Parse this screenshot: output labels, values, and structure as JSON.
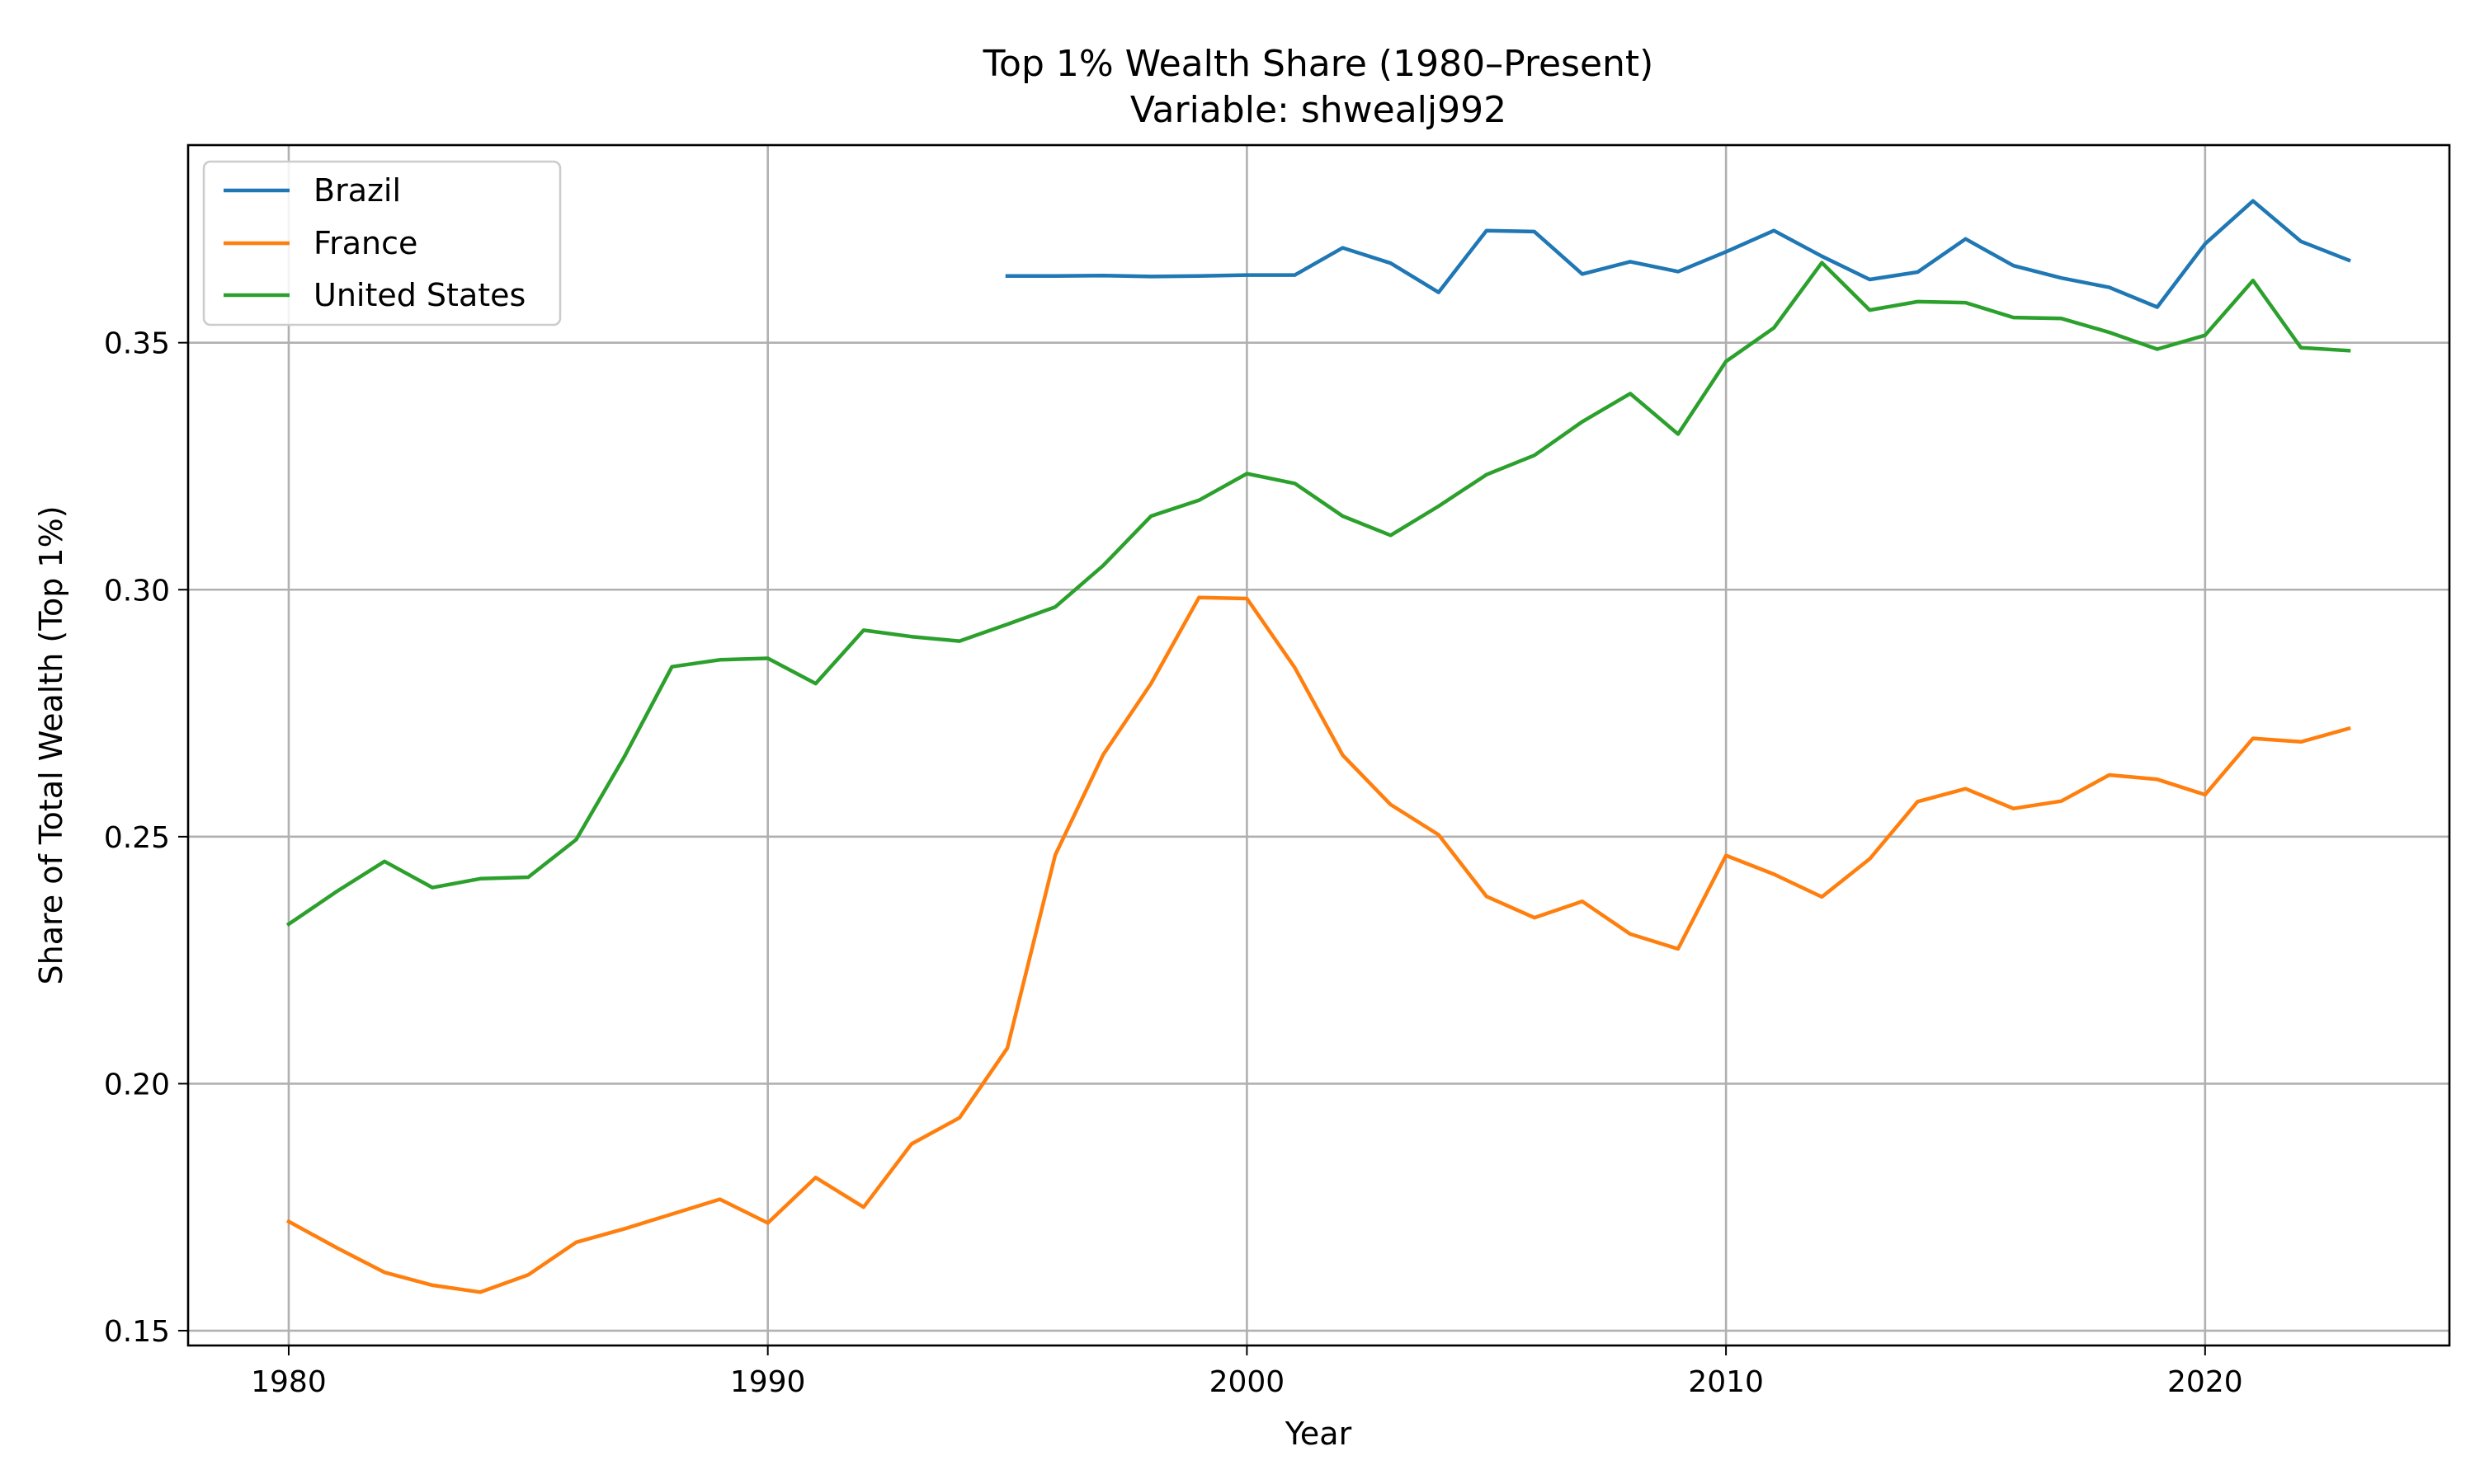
{
  "chart_data": {
    "type": "line",
    "title": "Top 1% Wealth Share (1980–Present)",
    "subtitle": "Variable: shwealj992",
    "xlabel": "Year",
    "ylabel": "Share of Total Wealth (Top 1%)",
    "xlim": [
      1977.9,
      2025.1
    ],
    "ylim": [
      0.147,
      0.39
    ],
    "x_ticks": [
      1980,
      1990,
      2000,
      2010,
      2020
    ],
    "x_tick_labels": [
      "1980",
      "1990",
      "2000",
      "2010",
      "2020"
    ],
    "y_ticks": [
      0.15,
      0.2,
      0.25,
      0.3,
      0.35
    ],
    "y_tick_labels": [
      "0.15",
      "0.20",
      "0.25",
      "0.30",
      "0.35"
    ],
    "grid": true,
    "legend_position": "top-left",
    "series": [
      {
        "name": "Brazil",
        "color": "#1f77b4",
        "x": [
          1995,
          1996,
          1997,
          1998,
          1999,
          2000,
          2001,
          2002,
          2003,
          2004,
          2005,
          2006,
          2007,
          2008,
          2009,
          2010,
          2011,
          2012,
          2013,
          2014,
          2015,
          2016,
          2017,
          2018,
          2019,
          2020,
          2021,
          2022,
          2023
        ],
        "values": [
          0.3635,
          0.3635,
          0.3636,
          0.3634,
          0.3635,
          0.3637,
          0.3637,
          0.3692,
          0.3661,
          0.3602,
          0.3727,
          0.3725,
          0.3639,
          0.3664,
          0.3644,
          0.3684,
          0.3727,
          0.3675,
          0.3628,
          0.3643,
          0.371,
          0.3656,
          0.3631,
          0.3612,
          0.3572,
          0.37,
          0.3787,
          0.3705,
          0.3667
        ]
      },
      {
        "name": "France",
        "color": "#ff7f0e",
        "x": [
          1980,
          1981,
          1982,
          1983,
          1984,
          1985,
          1986,
          1987,
          1988,
          1989,
          1990,
          1991,
          1992,
          1993,
          1994,
          1995,
          1996,
          1997,
          1998,
          1999,
          2000,
          2001,
          2002,
          2003,
          2004,
          2005,
          2006,
          2007,
          2008,
          2009,
          2010,
          2011,
          2012,
          2013,
          2014,
          2015,
          2016,
          2017,
          2018,
          2019,
          2020,
          2021,
          2022,
          2023
        ],
        "values": [
          0.1721,
          0.1668,
          0.1618,
          0.1592,
          0.1578,
          0.1613,
          0.1679,
          0.1706,
          0.1736,
          0.1766,
          0.1718,
          0.181,
          0.175,
          0.1878,
          0.1931,
          0.2072,
          0.2463,
          0.2666,
          0.281,
          0.2984,
          0.2982,
          0.2842,
          0.2665,
          0.2565,
          0.2504,
          0.2379,
          0.2336,
          0.2369,
          0.2303,
          0.2273,
          0.2462,
          0.2424,
          0.2378,
          0.2455,
          0.2571,
          0.2597,
          0.2557,
          0.2572,
          0.2625,
          0.2616,
          0.2585,
          0.2699,
          0.2692,
          0.2719
        ]
      },
      {
        "name": "United States",
        "color": "#2ca02c",
        "x": [
          1980,
          1981,
          1982,
          1983,
          1984,
          1985,
          1986,
          1987,
          1988,
          1989,
          1990,
          1991,
          1992,
          1993,
          1994,
          1995,
          1996,
          1997,
          1998,
          1999,
          2000,
          2001,
          2002,
          2003,
          2004,
          2005,
          2006,
          2007,
          2008,
          2009,
          2010,
          2011,
          2012,
          2013,
          2014,
          2015,
          2016,
          2017,
          2018,
          2019,
          2020,
          2021,
          2022,
          2023
        ],
        "values": [
          0.2323,
          0.2389,
          0.245,
          0.2397,
          0.2415,
          0.2418,
          0.2494,
          0.2661,
          0.2844,
          0.2858,
          0.2861,
          0.281,
          0.2918,
          0.2905,
          0.2896,
          0.293,
          0.2965,
          0.3049,
          0.3149,
          0.3181,
          0.3235,
          0.3215,
          0.3149,
          0.311,
          0.3169,
          0.3233,
          0.3272,
          0.334,
          0.3397,
          0.3315,
          0.3462,
          0.353,
          0.3662,
          0.3566,
          0.3583,
          0.3581,
          0.3551,
          0.3549,
          0.3521,
          0.3487,
          0.3515,
          0.3626,
          0.349,
          0.3484
        ]
      }
    ]
  }
}
